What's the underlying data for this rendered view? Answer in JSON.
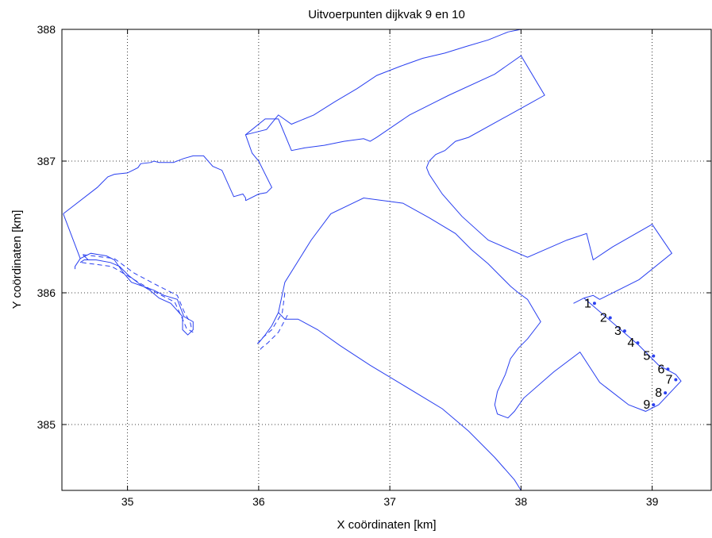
{
  "chart_data": {
    "type": "line",
    "title": "Uitvoerpunten dijkvak 9 en 10",
    "xlabel": "X coördinaten [km]",
    "ylabel": "Y coördinaten [km]",
    "xlim": [
      34.5,
      39.45
    ],
    "ylim": [
      384.5,
      388.0
    ],
    "xticks": [
      35,
      36,
      37,
      38,
      39
    ],
    "yticks": [
      385,
      386,
      387,
      388
    ],
    "xtick_labels": [
      "35",
      "36",
      "37",
      "38",
      "39"
    ],
    "ytick_labels": [
      "385",
      "386",
      "387",
      "388"
    ],
    "grid": true,
    "line_color": "#2a40f0",
    "series": [
      {
        "style": "solid",
        "points": [
          [
            34.51,
            386.6
          ],
          [
            34.64,
            386.26
          ],
          [
            34.72,
            386.3
          ],
          [
            34.84,
            386.28
          ],
          [
            34.9,
            386.25
          ],
          [
            34.97,
            386.15
          ],
          [
            35.03,
            386.08
          ],
          [
            35.2,
            386.02
          ],
          [
            35.28,
            385.98
          ],
          [
            35.38,
            385.95
          ],
          [
            35.43,
            385.82
          ],
          [
            35.5,
            385.78
          ],
          [
            35.5,
            385.72
          ],
          [
            35.46,
            385.68
          ],
          [
            35.42,
            385.72
          ],
          [
            35.42,
            385.82
          ],
          [
            35.33,
            385.92
          ],
          [
            35.24,
            385.96
          ],
          [
            35.17,
            386.02
          ],
          [
            35.1,
            386.06
          ],
          [
            35.01,
            386.13
          ],
          [
            34.94,
            386.2
          ],
          [
            34.87,
            386.23
          ],
          [
            34.76,
            386.25
          ],
          [
            34.67,
            386.25
          ],
          [
            34.64,
            386.23
          ]
        ]
      },
      {
        "style": "solid",
        "points": [
          [
            34.64,
            386.26
          ],
          [
            34.6,
            386.2
          ],
          [
            34.6,
            386.18
          ]
        ]
      },
      {
        "style": "solid",
        "points": [
          [
            34.51,
            386.6
          ],
          [
            34.77,
            386.8
          ],
          [
            34.85,
            386.88
          ],
          [
            34.9,
            386.9
          ],
          [
            35.0,
            386.91
          ],
          [
            35.08,
            386.95
          ],
          [
            35.1,
            386.98
          ],
          [
            35.18,
            386.99
          ],
          [
            35.2,
            387.0
          ],
          [
            35.24,
            386.99
          ],
          [
            35.35,
            386.99
          ],
          [
            35.43,
            387.02
          ],
          [
            35.5,
            387.04
          ],
          [
            35.58,
            387.04
          ],
          [
            35.65,
            386.96
          ],
          [
            35.72,
            386.93
          ],
          [
            35.81,
            386.73
          ],
          [
            35.88,
            386.75
          ],
          [
            35.9,
            386.72
          ],
          [
            35.9,
            386.7
          ]
        ]
      },
      {
        "style": "solid",
        "points": [
          [
            35.9,
            386.7
          ],
          [
            36.0,
            386.75
          ],
          [
            36.06,
            386.76
          ],
          [
            36.1,
            386.8
          ],
          [
            36.0,
            387.0
          ],
          [
            35.95,
            387.06
          ],
          [
            35.9,
            387.2
          ],
          [
            36.06,
            387.24
          ],
          [
            36.15,
            387.35
          ],
          [
            36.25,
            387.28
          ],
          [
            36.42,
            387.35
          ],
          [
            36.58,
            387.45
          ],
          [
            36.75,
            387.55
          ],
          [
            36.9,
            387.65
          ],
          [
            37.08,
            387.72
          ],
          [
            37.25,
            387.78
          ],
          [
            37.42,
            387.82
          ],
          [
            37.58,
            387.87
          ],
          [
            37.75,
            387.92
          ],
          [
            37.9,
            387.98
          ],
          [
            38.0,
            388.0
          ]
        ]
      },
      {
        "style": "solid",
        "points": [
          [
            34.66,
            386.29
          ],
          [
            34.7,
            386.25
          ]
        ]
      },
      {
        "style": "dashed",
        "points": [
          [
            34.66,
            386.29
          ],
          [
            34.9,
            386.26
          ],
          [
            35.05,
            386.15
          ],
          [
            35.22,
            386.06
          ],
          [
            35.38,
            385.98
          ],
          [
            35.43,
            385.86
          ],
          [
            35.48,
            385.77
          ],
          [
            35.49,
            385.72
          ]
        ]
      },
      {
        "style": "dashed",
        "points": [
          [
            34.65,
            386.23
          ],
          [
            34.88,
            386.2
          ],
          [
            35.05,
            386.1
          ],
          [
            35.22,
            386.0
          ],
          [
            35.36,
            385.93
          ],
          [
            35.42,
            385.8
          ],
          [
            35.45,
            385.73
          ],
          [
            35.5,
            385.7
          ]
        ]
      },
      {
        "style": "solid",
        "points": [
          [
            35.9,
            387.2
          ],
          [
            36.05,
            387.32
          ],
          [
            36.15,
            387.32
          ],
          [
            36.25,
            387.08
          ],
          [
            36.35,
            387.1
          ],
          [
            36.5,
            387.12
          ],
          [
            36.65,
            387.15
          ],
          [
            36.8,
            387.17
          ],
          [
            36.85,
            387.15
          ],
          [
            36.9,
            387.18
          ],
          [
            37.15,
            387.35
          ],
          [
            37.45,
            387.5
          ],
          [
            37.8,
            387.66
          ],
          [
            38.0,
            387.8
          ],
          [
            38.18,
            387.5
          ],
          [
            38.0,
            387.4
          ],
          [
            37.6,
            387.18
          ],
          [
            37.5,
            387.15
          ],
          [
            37.42,
            387.08
          ],
          [
            37.35,
            387.05
          ],
          [
            37.3,
            387.0
          ],
          [
            37.28,
            386.95
          ],
          [
            37.3,
            386.9
          ],
          [
            37.4,
            386.75
          ],
          [
            37.55,
            386.58
          ],
          [
            37.75,
            386.4
          ],
          [
            38.05,
            386.27
          ],
          [
            38.35,
            386.4
          ],
          [
            38.5,
            386.45
          ],
          [
            38.55,
            386.25
          ],
          [
            38.7,
            386.35
          ],
          [
            39.0,
            386.52
          ],
          [
            39.15,
            386.3
          ],
          [
            38.9,
            386.1
          ],
          [
            38.6,
            385.95
          ],
          [
            38.55,
            385.98
          ],
          [
            38.48,
            385.96
          ],
          [
            38.4,
            385.92
          ]
        ]
      },
      {
        "style": "solid",
        "points": [
          [
            38.48,
            385.96
          ],
          [
            38.9,
            385.6
          ],
          [
            39.05,
            385.45
          ],
          [
            39.18,
            385.38
          ],
          [
            39.22,
            385.33
          ],
          [
            39.05,
            385.15
          ],
          [
            38.95,
            385.1
          ],
          [
            38.82,
            385.15
          ],
          [
            38.6,
            385.32
          ],
          [
            38.45,
            385.55
          ],
          [
            38.25,
            385.4
          ],
          [
            38.02,
            385.2
          ],
          [
            37.95,
            385.1
          ],
          [
            37.9,
            385.05
          ],
          [
            37.82,
            385.08
          ],
          [
            37.8,
            385.15
          ],
          [
            37.82,
            385.25
          ],
          [
            37.88,
            385.38
          ],
          [
            37.92,
            385.5
          ],
          [
            37.98,
            385.58
          ],
          [
            38.05,
            385.65
          ],
          [
            38.15,
            385.78
          ],
          [
            38.05,
            385.95
          ],
          [
            37.98,
            386.0
          ],
          [
            37.92,
            386.05
          ],
          [
            37.85,
            386.12
          ],
          [
            37.75,
            386.22
          ],
          [
            37.62,
            386.33
          ],
          [
            37.5,
            386.45
          ],
          [
            37.3,
            386.57
          ],
          [
            37.1,
            386.68
          ],
          [
            36.8,
            386.72
          ],
          [
            36.55,
            386.6
          ],
          [
            36.4,
            386.4
          ],
          [
            36.2,
            386.08
          ],
          [
            36.15,
            385.85
          ],
          [
            36.1,
            385.75
          ],
          [
            36.05,
            385.68
          ],
          [
            36.0,
            385.62
          ]
        ]
      },
      {
        "style": "solid",
        "points": [
          [
            36.15,
            385.85
          ],
          [
            36.2,
            385.8
          ],
          [
            36.3,
            385.8
          ],
          [
            36.45,
            385.72
          ],
          [
            36.62,
            385.6
          ],
          [
            36.85,
            385.45
          ],
          [
            37.1,
            385.3
          ],
          [
            37.4,
            385.12
          ],
          [
            37.6,
            384.95
          ],
          [
            37.8,
            384.75
          ],
          [
            37.95,
            384.58
          ],
          [
            38.0,
            384.5
          ]
        ]
      },
      {
        "style": "dashed",
        "points": [
          [
            36.2,
            386.0
          ],
          [
            36.18,
            385.85
          ],
          [
            36.1,
            385.72
          ],
          [
            36.02,
            385.65
          ],
          [
            35.98,
            385.6
          ]
        ]
      },
      {
        "style": "dashed",
        "points": [
          [
            36.22,
            385.83
          ],
          [
            36.15,
            385.7
          ],
          [
            36.07,
            385.62
          ],
          [
            36.02,
            385.58
          ],
          [
            36.0,
            385.55
          ]
        ]
      }
    ],
    "output_points": [
      {
        "label": "1",
        "x": 38.56,
        "y": 385.92
      },
      {
        "label": "2",
        "x": 38.68,
        "y": 385.81
      },
      {
        "label": "3",
        "x": 38.79,
        "y": 385.71
      },
      {
        "label": "4",
        "x": 38.89,
        "y": 385.62
      },
      {
        "label": "5",
        "x": 39.01,
        "y": 385.52
      },
      {
        "label": "6",
        "x": 39.12,
        "y": 385.42
      },
      {
        "label": "7",
        "x": 39.18,
        "y": 385.34
      },
      {
        "label": "8",
        "x": 39.1,
        "y": 385.24
      },
      {
        "label": "9",
        "x": 39.01,
        "y": 385.15
      }
    ]
  }
}
